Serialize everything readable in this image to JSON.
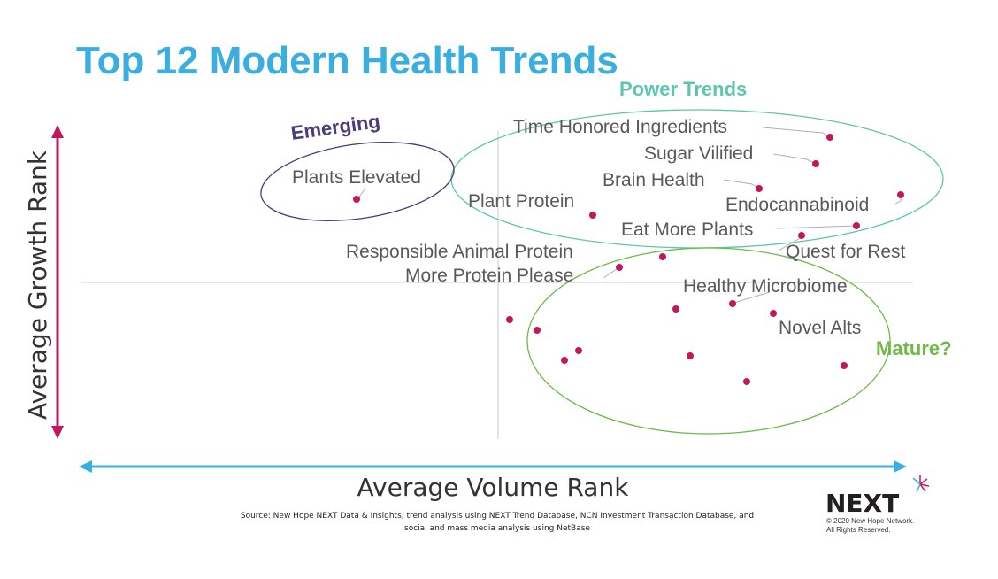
{
  "chart_data": {
    "type": "scatter",
    "title": "Top 12 Modern Health Trends",
    "xlabel": "Average Volume Rank",
    "ylabel": "Average Growth Rank",
    "groups": [
      {
        "label": "Power Trends",
        "color": "#5cc6b0"
      },
      {
        "label": "Emerging",
        "color": "#4b3b7a"
      },
      {
        "label": "Mature?",
        "color": "#6dbb45"
      }
    ],
    "labeled_points": [
      {
        "label": "Time Honored Ingredients"
      },
      {
        "label": "Sugar Vilified"
      },
      {
        "label": "Brain Health"
      },
      {
        "label": "Endocannabinoid"
      },
      {
        "label": "Plant Protein"
      },
      {
        "label": "Eat More Plants"
      },
      {
        "label": "Plants Elevated"
      },
      {
        "label": "Responsible Animal Protein"
      },
      {
        "label": "Quest for Rest"
      },
      {
        "label": "More Protein Please"
      },
      {
        "label": "Healthy Microbiome"
      },
      {
        "label": "Novel Alts"
      }
    ],
    "point_color": "#c2185b",
    "axis_x_color": "#3aaee0",
    "axis_y_color": "#c2185b"
  },
  "source_note": "Source: New Hope NEXT Data & Insights, trend analysis using NEXT Trend Database, NCN Investment Transaction Database, and",
  "source_note_2": "social and mass media analysis using NetBase",
  "logo": {
    "brand": "NEXT",
    "copyright": "© 2020 New Hope Network.",
    "rights": "All Rights Reserved."
  }
}
